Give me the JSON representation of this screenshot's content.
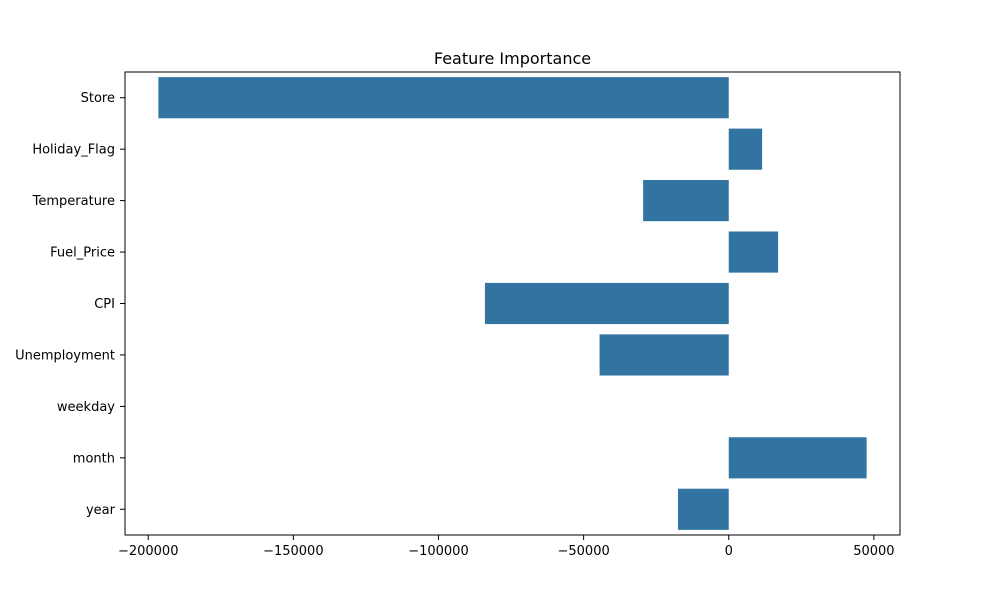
{
  "chart_data": {
    "type": "bar",
    "orientation": "horizontal",
    "title": "Feature Importance",
    "xlabel": "",
    "ylabel": "",
    "categories": [
      "Store",
      "Holiday_Flag",
      "Temperature",
      "Fuel_Price",
      "CPI",
      "Unemployment",
      "weekday",
      "month",
      "year"
    ],
    "values": [
      -196500,
      11500,
      -29500,
      17000,
      -84000,
      -44500,
      0,
      47500,
      -17500
    ],
    "xlim": [
      -208000,
      59000
    ],
    "xticks": [
      -200000,
      -150000,
      -100000,
      -50000,
      0,
      50000
    ],
    "xtick_labels": [
      "−200000",
      "−150000",
      "−100000",
      "−50000",
      "0",
      "50000"
    ],
    "grid": false,
    "colors": {
      "bar": "#3274a1",
      "axis": "#000000"
    }
  }
}
